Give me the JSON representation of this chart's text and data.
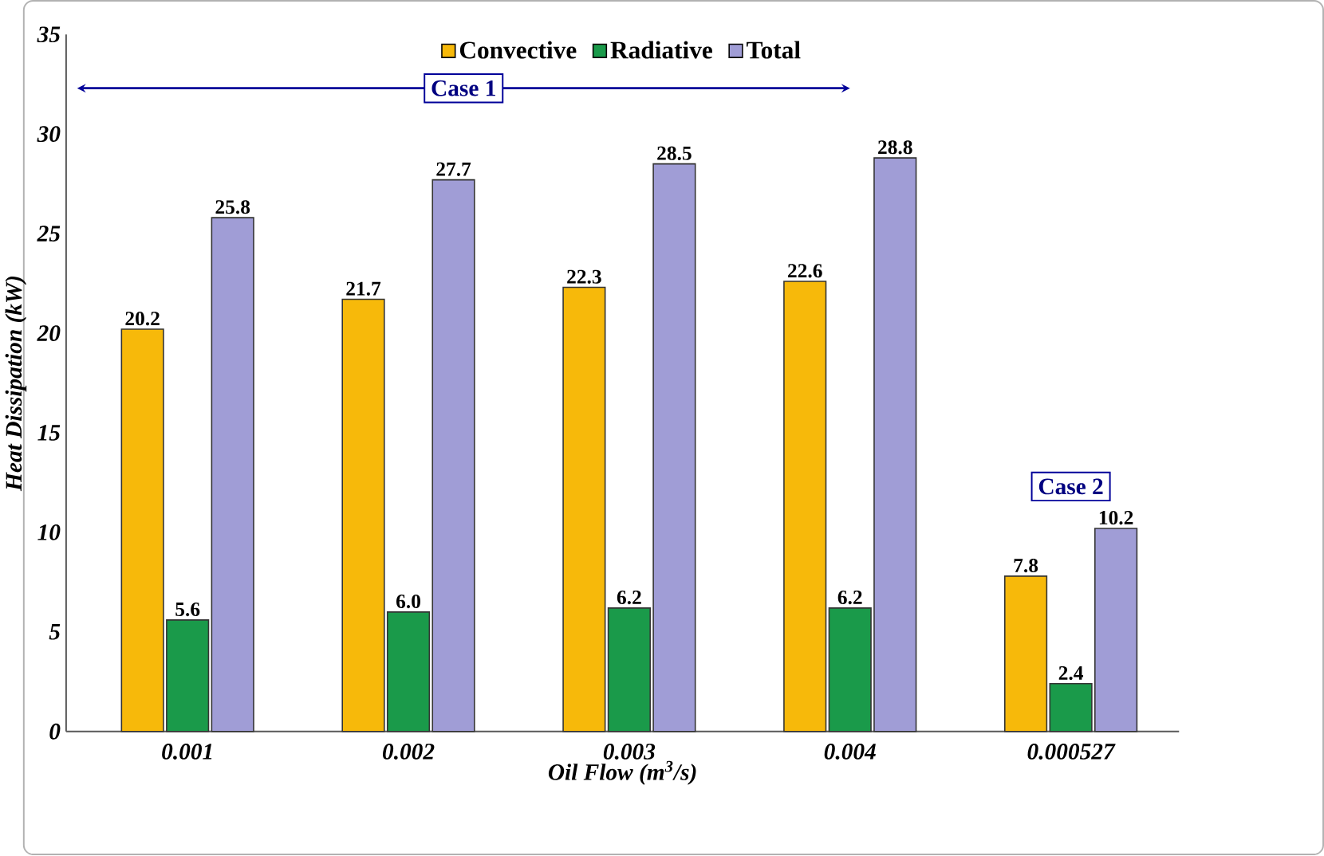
{
  "chart_data": {
    "type": "bar",
    "xlabel": "Oil Flow (m$^{3}$/s)",
    "ylabel": "Heat Dissipation (kW)",
    "categories": [
      "0.001",
      "0.002",
      "0.003",
      "0.004",
      "0.000527"
    ],
    "series": [
      {
        "name": "Convective",
        "color": "#f7b90a",
        "values": [
          20.2,
          21.7,
          22.3,
          22.6,
          7.8
        ],
        "value_labels": [
          "20.2",
          "21.7",
          "22.3",
          "22.6",
          "7.8"
        ]
      },
      {
        "name": "Radiative",
        "color": "#1a9a4a",
        "values": [
          5.6,
          6.0,
          6.2,
          6.2,
          2.4
        ],
        "value_labels": [
          "5.6",
          "6.0",
          "6.2",
          "6.2",
          "2.4"
        ]
      },
      {
        "name": "Total",
        "color": "#a09dd6",
        "values": [
          25.8,
          27.7,
          28.5,
          28.8,
          10.2
        ],
        "value_labels": [
          "25.8",
          "27.7",
          "28.5",
          "28.8",
          "10.2"
        ]
      }
    ],
    "ylim": [
      0,
      35
    ],
    "yticks": [
      0,
      5,
      10,
      15,
      20,
      25,
      30,
      35
    ],
    "legend": "top",
    "annotations": [
      "Case 1",
      "Case 2"
    ]
  }
}
